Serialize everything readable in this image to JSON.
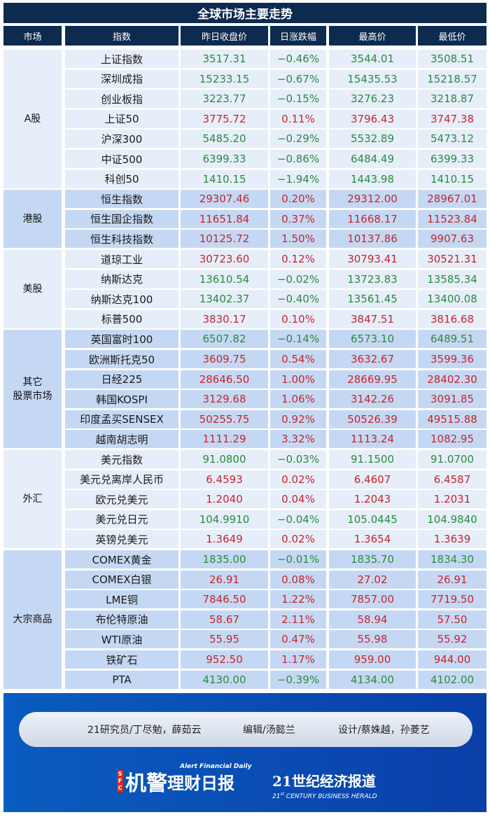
{
  "title": "全球市场主要走势",
  "headers": [
    "市场",
    "指数",
    "昨日收盘价",
    "日涨跌幅",
    "最高价",
    "最低价"
  ],
  "colors": {
    "header": "#0d2a4f",
    "up": "#c4262e",
    "down": "#2b8a3e",
    "section_light": "#e6eef9",
    "section_dark": "#c5d8f3"
  },
  "sections": [
    {
      "market": "A股",
      "rows": [
        [
          "上证指数",
          "3517.31",
          "−0.46%",
          "3544.01",
          "3508.51",
          "down"
        ],
        [
          "深圳成指",
          "15233.15",
          "−0.67%",
          "15435.53",
          "15218.57",
          "down"
        ],
        [
          "创业板指",
          "3223.77",
          "−0.15%",
          "3276.23",
          "3218.87",
          "down"
        ],
        [
          "上证50",
          "3775.72",
          "0.11%",
          "3796.43",
          "3747.38",
          "up"
        ],
        [
          "沪深300",
          "5485.20",
          "−0.29%",
          "5532.89",
          "5473.12",
          "down"
        ],
        [
          "中证500",
          "6399.33",
          "−0.86%",
          "6484.49",
          "6399.33",
          "down"
        ],
        [
          "科创50",
          "1410.15",
          "−1.94%",
          "1443.98",
          "1410.15",
          "down"
        ]
      ]
    },
    {
      "market": "港股",
      "rows": [
        [
          "恒生指数",
          "29307.46",
          "0.20%",
          "29312.00",
          "28967.01",
          "up"
        ],
        [
          "恒生国企指数",
          "11651.84",
          "0.37%",
          "11668.17",
          "11523.84",
          "up"
        ],
        [
          "恒生科技指数",
          "10125.72",
          "1.50%",
          "10137.86",
          "9907.63",
          "up"
        ]
      ]
    },
    {
      "market": "美股",
      "rows": [
        [
          "道琼工业",
          "30723.60",
          "0.12%",
          "30793.41",
          "30521.31",
          "up"
        ],
        [
          "纳斯达克",
          "13610.54",
          "−0.02%",
          "13723.83",
          "13585.34",
          "down"
        ],
        [
          "纳斯达克100",
          "13402.37",
          "−0.40%",
          "13561.45",
          "13400.08",
          "down"
        ],
        [
          "标普500",
          "3830.17",
          "0.10%",
          "3847.51",
          "3816.68",
          "up"
        ]
      ]
    },
    {
      "market": "其它\n股票市场",
      "rows": [
        [
          "英国富时100",
          "6507.82",
          "−0.14%",
          "6573.10",
          "6489.51",
          "down"
        ],
        [
          "欧洲斯托克50",
          "3609.75",
          "0.54%",
          "3632.67",
          "3599.36",
          "up"
        ],
        [
          "日经225",
          "28646.50",
          "1.00%",
          "28669.95",
          "28402.30",
          "up"
        ],
        [
          "韩国KOSPI",
          "3129.68",
          "1.06%",
          "3142.26",
          "3091.85",
          "up"
        ],
        [
          "印度孟买SENSEX",
          "50255.75",
          "0.92%",
          "50526.39",
          "49515.88",
          "up"
        ],
        [
          "越南胡志明",
          "1111.29",
          "3.32%",
          "1113.24",
          "1082.95",
          "up"
        ]
      ]
    },
    {
      "market": "外汇",
      "rows": [
        [
          "美元指数",
          "91.0800",
          "−0.03%",
          "91.1500",
          "91.0700",
          "down"
        ],
        [
          "美元兑离岸人民币",
          "6.4593",
          "0.02%",
          "6.4607",
          "6.4587",
          "up"
        ],
        [
          "欧元兑美元",
          "1.2040",
          "0.04%",
          "1.2043",
          "1.2031",
          "up"
        ],
        [
          "美元兑日元",
          "104.9910",
          "−0.04%",
          "105.0445",
          "104.9840",
          "down"
        ],
        [
          "英镑兑美元",
          "1.3649",
          "0.02%",
          "1.3654",
          "1.3639",
          "up"
        ]
      ]
    },
    {
      "market": "大宗商品",
      "rows": [
        [
          "COMEX黄金",
          "1835.00",
          "−0.01%",
          "1835.70",
          "1834.30",
          "down"
        ],
        [
          "COMEX白银",
          "26.91",
          "0.08%",
          "27.02",
          "26.91",
          "up"
        ],
        [
          "LME铜",
          "7846.50",
          "1.22%",
          "7857.00",
          "7719.50",
          "up"
        ],
        [
          "布伦特原油",
          "58.67",
          "2.11%",
          "58.94",
          "57.50",
          "up"
        ],
        [
          "WTI原油",
          "55.95",
          "0.47%",
          "55.98",
          "55.92",
          "up"
        ],
        [
          "铁矿石",
          "952.50",
          "1.17%",
          "959.00",
          "944.00",
          "up"
        ],
        [
          "PTA",
          "4130.00",
          "−0.39%",
          "4134.00",
          "4102.00",
          "down"
        ]
      ]
    }
  ],
  "footer": {
    "credits": [
      "21研究员/丁尽勉，薛茹云",
      "编辑/汤懿兰",
      "设计/蔡姝越，孙菱艺"
    ],
    "logo1": {
      "badge": "SFC",
      "text": "机警理财日报",
      "en": "Alert Financial Daily"
    },
    "logo2": {
      "text": "21世纪经济报道",
      "en": "21st CENTURY BUSINESS HERALD"
    }
  }
}
